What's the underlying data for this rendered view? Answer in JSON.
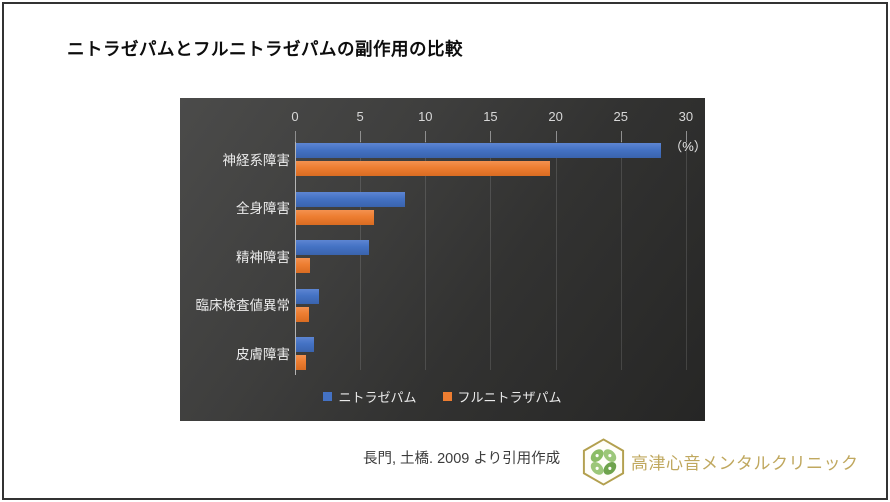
{
  "title": "ニトラゼパムとフルニトラゼパムの副作用の比較",
  "chart_data": {
    "type": "bar",
    "orientation": "horizontal",
    "categories": [
      "神経系障害",
      "全身障害",
      "精神障害",
      "臨床検査値異常",
      "皮膚障害"
    ],
    "series": [
      {
        "name": "ニトラゼパム",
        "color": "#4472C4",
        "values": [
          28.0,
          8.4,
          5.6,
          1.8,
          1.4
        ]
      },
      {
        "name": "フルニトラザパム",
        "color": "#ED7D31",
        "values": [
          19.5,
          6.0,
          1.1,
          1.0,
          0.8
        ]
      }
    ],
    "xlabel": "（%）",
    "x_ticks": [
      0,
      5,
      10,
      15,
      20,
      25,
      30
    ],
    "xlim": [
      0,
      30
    ],
    "grid": true,
    "legend_position": "bottom-center",
    "plot_background": "dark-gray-gradient"
  },
  "footer": {
    "citation": "長門, 土橋. 2009 より引用作成",
    "brand": "高津心音メンタルクリニック"
  },
  "colors": {
    "series1": "#4472C4",
    "series2": "#ED7D31",
    "plot_bg_light": "#4b4b4a",
    "plot_bg_dark": "#262625",
    "brand_gold": "#c0a85f",
    "logo_green": "#7fb15c",
    "frame_border": "#333333"
  }
}
